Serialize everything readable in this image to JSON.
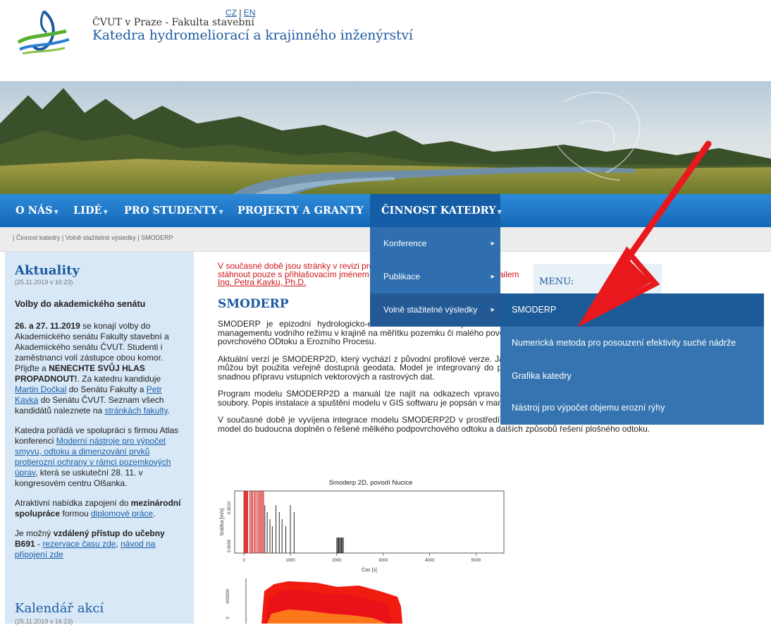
{
  "header": {
    "lang": {
      "cz": "CZ",
      "sep": "|",
      "en": "EN"
    },
    "university": "ČVUT v Praze - Fakulta stavební",
    "department": "Katedra hydromeliorací a krajinného inženýrství"
  },
  "nav": {
    "items": [
      {
        "label": "O NÁS"
      },
      {
        "label": "LIDÉ"
      },
      {
        "label": "PRO STUDENTY"
      },
      {
        "label": "PROJEKTY A GRANTY"
      },
      {
        "label": "ČINNOST KATEDRY"
      }
    ],
    "arrow": "▼"
  },
  "breadcrumb": "| Činnost katedry | Volně stažitelné výsledky | SMODERP",
  "dropdown": {
    "items": [
      {
        "label": "Konference"
      },
      {
        "label": "Publikace"
      },
      {
        "label": "Volně stažitelné výsledky"
      }
    ],
    "chevron": "▶"
  },
  "submenu": {
    "items": [
      {
        "label": "SMODERP"
      },
      {
        "label": "Numerická metoda pro posouzení efektivity suché nádrže"
      },
      {
        "label": "Grafika katedry"
      },
      {
        "label": "Nástroj pro výpočet objemu erozní rýhy"
      }
    ]
  },
  "left": {
    "title": "Aktuality",
    "date": "(25.11.2019 v 16:23)",
    "headline": "Volby do akademického senátu",
    "p1": {
      "dates": "26. a 27. 11.2019",
      "t1": " se konají volby do Akademického senátu Fakulty stavební a Akademického senátu ČVUT. Studenti i zaměstnanci volí zástupce obou komor. Přijďte a ",
      "strong": "NENECHTE SVŮJ HLAS PROPADNOUT!",
      "t2": ". Za katedru kandiduje ",
      "link1": "Martin Dočkal",
      "t3": " do Senátu Fakulty a ",
      "link2": "Petr Kavka",
      "t4": " do Senátu ČVUT. Seznam všech kandidátů naleznete na ",
      "link3": "stránkách fakulty",
      "t5": "."
    },
    "p2": {
      "t1": "Katedra pořádá ve spolupráci s firmou Atlas konferenci ",
      "link": "Moderní nástroje pro výpočet smyvu, odtoku a dimenzování prvků protierozní ochrany v rámci pozemkových úprav",
      "t2": ", která se uskuteční 28. 11. v kongresovém centru Olšanka."
    },
    "p3": {
      "t1": "Atraktivní nabídka zapojení do ",
      "strong": "mezinárodní spolupráce",
      "t2": " formou ",
      "link": "diplomové práce",
      "t3": "."
    },
    "p4": {
      "t1": "Je možný ",
      "strong1": "vzdálený přístup do učebny B691",
      "t2": " - ",
      "link1": "rezervace času zde",
      "t3": ", ",
      "link2": "návod na připojení zde"
    },
    "calendar_title": "Kalendář akcí",
    "calendar_date": "(25.11.2019 v 16:23)"
  },
  "main": {
    "warning": {
      "t1": "V současné době jsou stránky v revizi proto lze program a manuál modelu stáhnout pouze s přihlašovacím jménem a heslem, o které lze požádat e-mailem ",
      "link": "Ing. Petra Kavku, Ph.D."
    },
    "title": "SMODERP",
    "p1": "SMODERP je epizodní hydrologicko-erozní model sloužící především k navrhování protierozních opatření a managementu vodního režimu v krajině na měřítku pozemku či malého povodí. Celý název modelu je Simulační Model povrchového ODtoku a Erozního Procesu.",
    "p2": "Aktuální verzí je SMODERP2D, který vychází z původní profilové verze. Jako vstupní data do modelu SMODERP2D můžou být použita veřejně dostupná geodata. Model je integrovaný do používaných GIS softwarů, které umožňují snadnou přípravu vstupních vektorových a rastrových dat.",
    "p3": "Program modelu SMODERP2D a manuál lze najít na odkazech vpravo. Na odkazech jsou poskytnuty modelové soubory. Popis instalace a spuštění modelu v GIS softwaru je popsán v manuálu.",
    "p4": "V současné době je vyvíjena integrace modelu SMODERP2D v prostředí QGIS. Z hlediska fyzikálního řešení bude model do budoucna doplněn o řešené mělkého podpovrchového odtoku a dalších způsobů řešení plošného odtoku."
  },
  "right_menu": {
    "title": "MENU:"
  },
  "colors": {
    "nav": "#1e74c4",
    "accent": "#1c5aa0",
    "warning": "#d0161a",
    "arrow": "#e8181d"
  },
  "chart_data": {
    "type": "bar",
    "title": "Smoderp 2D, povodí Nucice",
    "xlabel": "Čas [s]",
    "ylabel": "Srážka [m/s]",
    "x_ticks": [
      0,
      1000,
      2000,
      3000,
      4000,
      5000
    ],
    "y_ticks": [
      "0.0000",
      "0.0010"
    ],
    "xlim": [
      -200,
      5600
    ],
    "red_x": [
      0,
      20,
      40,
      60,
      80,
      130,
      160,
      190,
      230,
      260,
      300,
      330,
      360,
      390,
      420
    ],
    "black_x": [
      450,
      500,
      560,
      610,
      690,
      760,
      820,
      900,
      1000,
      1080,
      2000,
      2020,
      2040,
      2060,
      2080,
      2100,
      2120,
      2140
    ]
  },
  "chart2": {
    "y_ticks": [
      "-000000",
      "0"
    ]
  }
}
